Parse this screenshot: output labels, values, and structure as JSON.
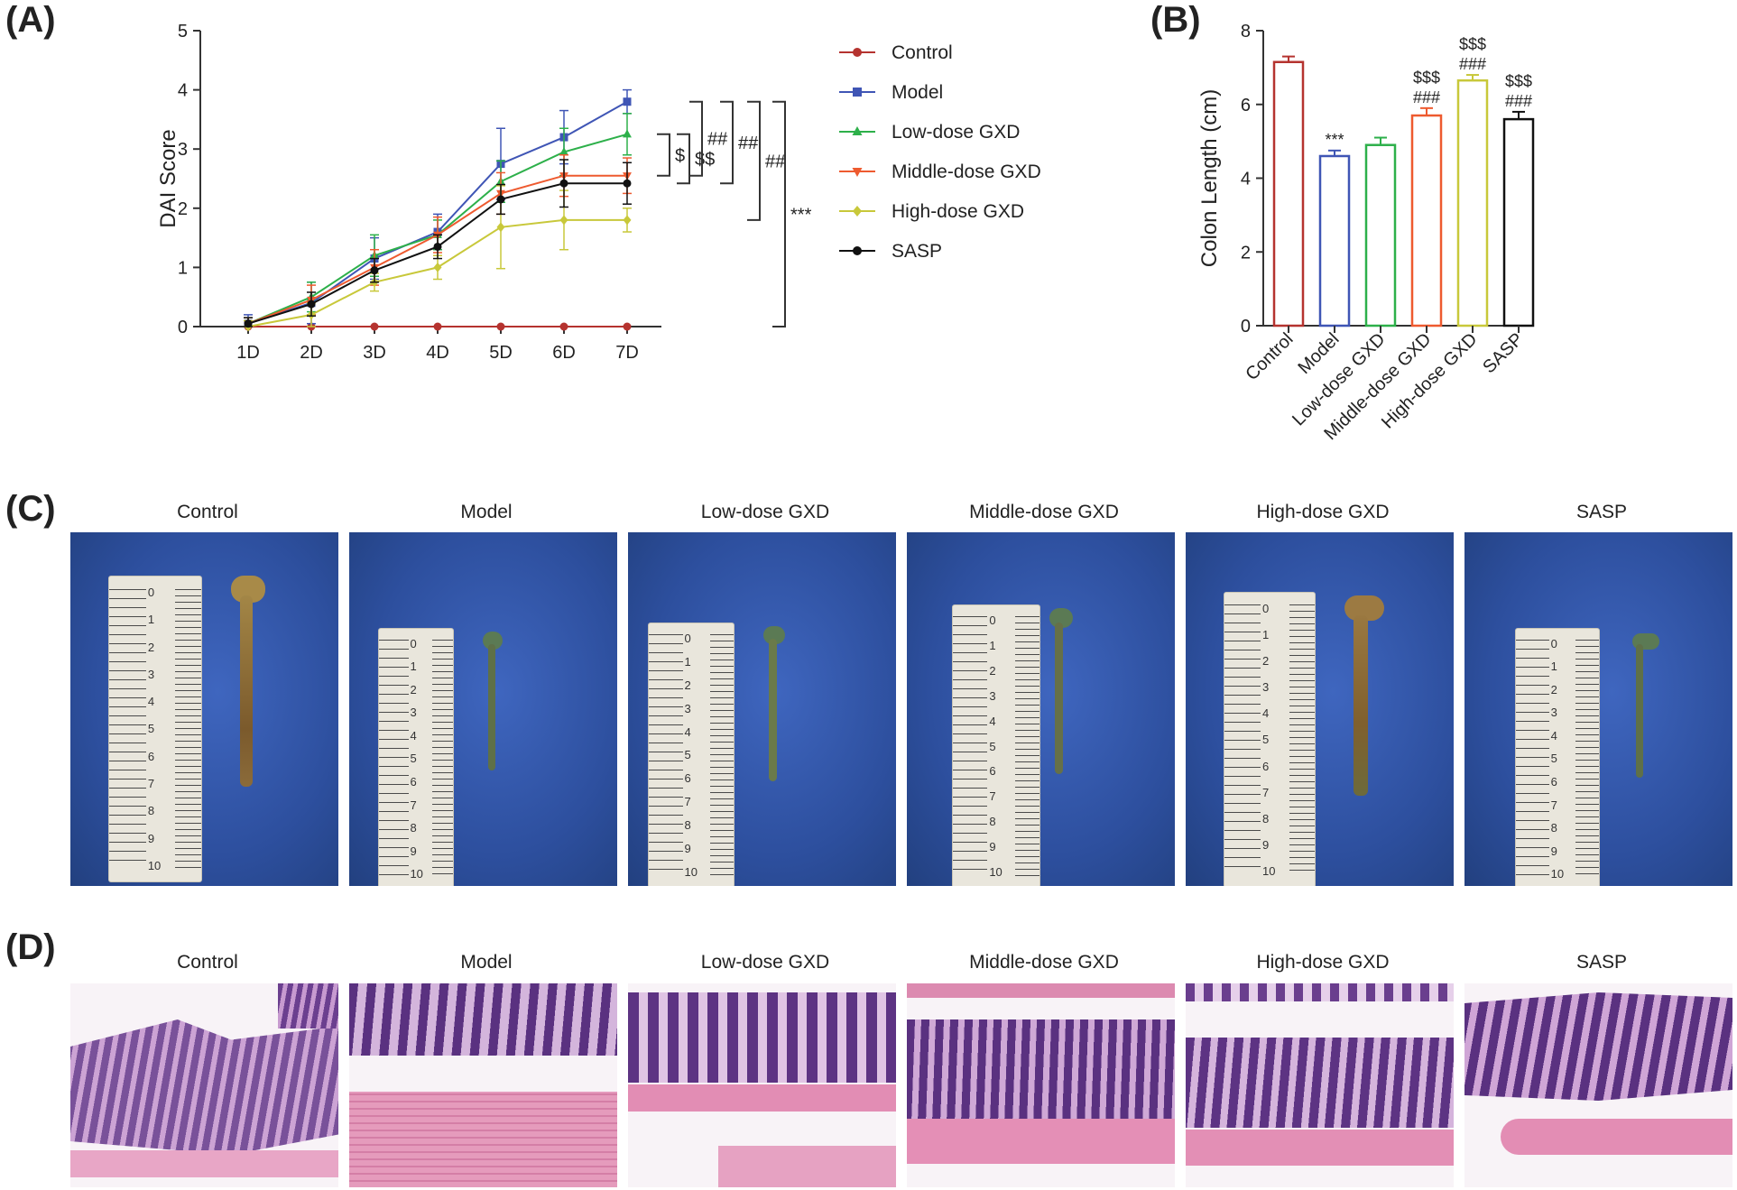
{
  "panels": {
    "a": "(A)",
    "b": "(B)",
    "c": "(C)",
    "d": "(D)"
  },
  "chart_data": [
    {
      "type": "line",
      "ylabel": "DAI Score",
      "xlabel": "",
      "categories": [
        "1D",
        "2D",
        "3D",
        "4D",
        "5D",
        "6D",
        "7D"
      ],
      "ylim": [
        0,
        5
      ],
      "yticks": [
        0,
        1,
        2,
        3,
        4,
        5
      ],
      "series": [
        {
          "name": "Control",
          "color": "#b5332f",
          "marker": "circle",
          "values": [
            0,
            0,
            0,
            0,
            0,
            0,
            0
          ],
          "err": [
            0,
            0,
            0,
            0,
            0,
            0,
            0
          ]
        },
        {
          "name": "Model",
          "color": "#3f55b5",
          "marker": "square",
          "values": [
            0.05,
            0.4,
            1.15,
            1.6,
            2.75,
            3.2,
            3.8
          ],
          "err": [
            0.15,
            0.35,
            0.35,
            0.3,
            0.6,
            0.45,
            0.2
          ]
        },
        {
          "name": "Low-dose GXD",
          "color": "#2db04a",
          "marker": "triangle-up",
          "values": [
            0.05,
            0.5,
            1.2,
            1.55,
            2.45,
            2.95,
            3.25
          ],
          "err": [
            0.1,
            0.25,
            0.35,
            0.25,
            0.35,
            0.4,
            0.35
          ]
        },
        {
          "name": "Middle-dose GXD",
          "color": "#ee5a2f",
          "marker": "triangle-down",
          "values": [
            0.05,
            0.45,
            1.0,
            1.55,
            2.25,
            2.55,
            2.55
          ],
          "err": [
            0.1,
            0.25,
            0.3,
            0.3,
            0.35,
            0.35,
            0.3
          ]
        },
        {
          "name": "High-dose GXD",
          "color": "#c8c83a",
          "marker": "diamond",
          "values": [
            0.0,
            0.2,
            0.75,
            1.0,
            1.68,
            1.8,
            1.8
          ],
          "err": [
            0.1,
            0.2,
            0.15,
            0.2,
            0.7,
            0.5,
            0.2
          ]
        },
        {
          "name": "SASP",
          "color": "#111111",
          "marker": "circle",
          "values": [
            0.05,
            0.38,
            0.95,
            1.35,
            2.15,
            2.42,
            2.42
          ],
          "err": [
            0.1,
            0.2,
            0.2,
            0.2,
            0.25,
            0.4,
            0.35
          ]
        }
      ],
      "brackets": [
        {
          "label": "$",
          "from": 3.25,
          "to": 2.55
        },
        {
          "label": "$$",
          "from": 3.25,
          "to": 2.42
        },
        {
          "label": "##",
          "from": 3.8,
          "to": 2.55
        },
        {
          "label": "##",
          "from": 3.8,
          "to": 2.42
        },
        {
          "label": "##",
          "from": 3.8,
          "to": 1.8
        },
        {
          "label": "***",
          "from": 3.8,
          "to": 0
        }
      ]
    },
    {
      "type": "bar",
      "ylabel": "Colon Length (cm)",
      "categories": [
        "Control",
        "Model",
        "Low-dose GXD",
        "Middle-dose GXD",
        "High-dose GXD",
        "SASP"
      ],
      "values": [
        7.15,
        4.6,
        4.9,
        5.7,
        6.65,
        5.6
      ],
      "err": [
        0.15,
        0.15,
        0.2,
        0.2,
        0.15,
        0.2
      ],
      "colors": [
        "#b5332f",
        "#3f55b5",
        "#2db04a",
        "#ee5a2f",
        "#c8c83a",
        "#111111"
      ],
      "annotations": [
        [],
        [
          "***"
        ],
        [],
        [
          "###",
          "$$$"
        ],
        [
          "###",
          "$$$"
        ],
        [
          "###",
          "$$$"
        ]
      ],
      "ylim": [
        0,
        8
      ],
      "yticks": [
        0,
        2,
        4,
        6,
        8
      ]
    }
  ],
  "photos": {
    "titles": [
      "Control",
      "Model",
      "Low-dose GXD",
      "Middle-dose GXD",
      "High-dose GXD",
      "SASP"
    ]
  },
  "histology": {
    "titles": [
      "Control",
      "Model",
      "Low-dose GXD",
      "Middle-dose GXD",
      "High-dose GXD",
      "SASP"
    ]
  }
}
